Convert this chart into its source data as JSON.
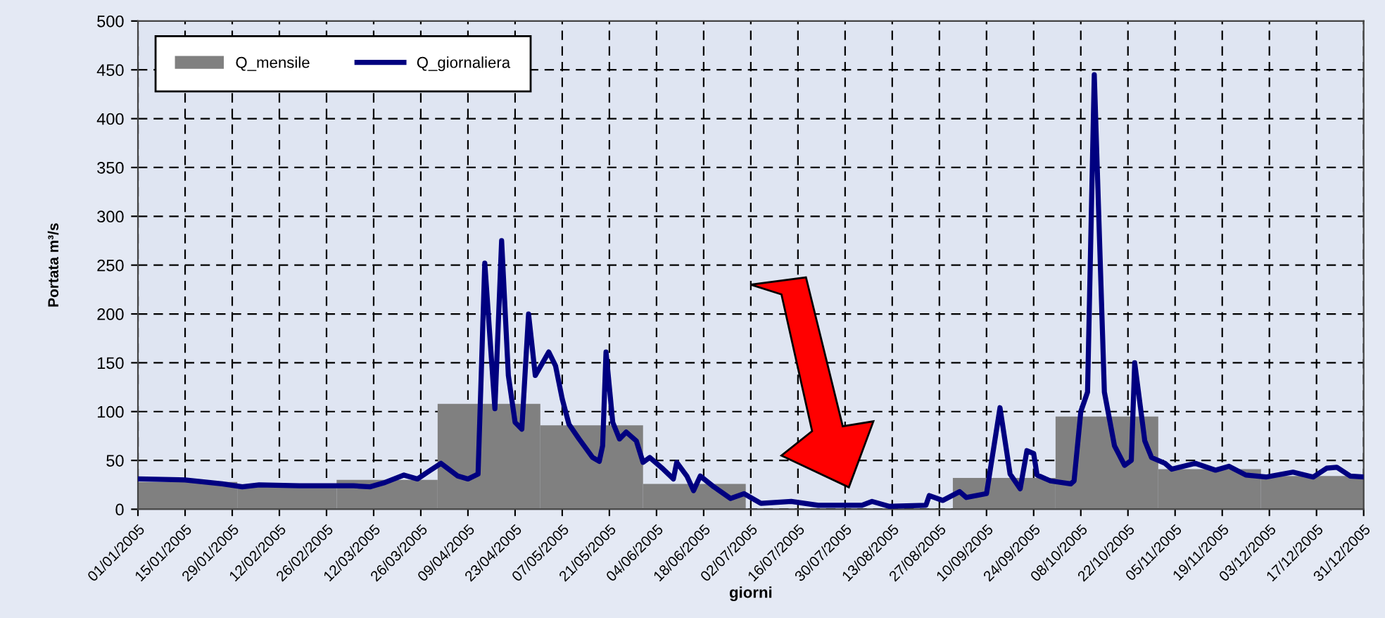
{
  "chart_data": {
    "type": "bar",
    "xlabel": "giorni",
    "ylabel": "Portata m³/s",
    "xlim": [
      "2005-01-01",
      "2005-12-31"
    ],
    "ylim": [
      0,
      500
    ],
    "yticks": [
      0,
      50,
      100,
      150,
      200,
      250,
      300,
      350,
      400,
      450,
      500
    ],
    "xticks": [
      {
        "value": "2005-01-01",
        "label": "01/01/2005"
      },
      {
        "value": "2005-01-15",
        "label": "15/01/2005"
      },
      {
        "value": "2005-01-29",
        "label": "29/01/2005"
      },
      {
        "value": "2005-02-12",
        "label": "12/02/2005"
      },
      {
        "value": "2005-02-26",
        "label": "26/02/2005"
      },
      {
        "value": "2005-03-12",
        "label": "12/03/2005"
      },
      {
        "value": "2005-03-26",
        "label": "26/03/2005"
      },
      {
        "value": "2005-04-09",
        "label": "09/04/2005"
      },
      {
        "value": "2005-04-23",
        "label": "23/04/2005"
      },
      {
        "value": "2005-05-07",
        "label": "07/05/2005"
      },
      {
        "value": "2005-05-21",
        "label": "21/05/2005"
      },
      {
        "value": "2005-06-04",
        "label": "04/06/2005"
      },
      {
        "value": "2005-06-18",
        "label": "18/06/2005"
      },
      {
        "value": "2005-07-02",
        "label": "02/07/2005"
      },
      {
        "value": "2005-07-16",
        "label": "16/07/2005"
      },
      {
        "value": "2005-07-30",
        "label": "30/07/2005"
      },
      {
        "value": "2005-08-13",
        "label": "13/08/2005"
      },
      {
        "value": "2005-08-27",
        "label": "27/08/2005"
      },
      {
        "value": "2005-09-10",
        "label": "10/09/2005"
      },
      {
        "value": "2005-09-24",
        "label": "24/09/2005"
      },
      {
        "value": "2005-10-08",
        "label": "08/10/2005"
      },
      {
        "value": "2005-10-22",
        "label": "22/10/2005"
      },
      {
        "value": "2005-11-05",
        "label": "05/11/2005"
      },
      {
        "value": "2005-11-19",
        "label": "19/11/2005"
      },
      {
        "value": "2005-12-03",
        "label": "03/12/2005"
      },
      {
        "value": "2005-12-17",
        "label": "17/12/2005"
      },
      {
        "value": "2005-12-31",
        "label": "31/12/2005"
      }
    ],
    "grid": true,
    "legend": "top left",
    "line_style": "solid",
    "marker": "none",
    "series": [
      {
        "name": "Q_mensile",
        "color": "#808080",
        "x": [
          "2005-01-16",
          "2005-02-14",
          "2005-03-16",
          "2005-04-15",
          "2005-05-16",
          "2005-06-15",
          "2005-07-16",
          "2005-08-16",
          "2005-09-15",
          "2005-10-16",
          "2005-11-15",
          "2005-12-16"
        ],
        "values": [
          28,
          25,
          30,
          108,
          86,
          26,
          null,
          null,
          32,
          95,
          41,
          34
        ]
      },
      {
        "name": "Q_giornaliera",
        "type": "line",
        "color": "#000080",
        "x": [
          "2005-01-01",
          "2005-01-15",
          "2005-01-26",
          "2005-02-01",
          "2005-02-06",
          "2005-02-18",
          "2005-03-06",
          "2005-03-11",
          "2005-03-15",
          "2005-03-21",
          "2005-03-25",
          "2005-03-28",
          "2005-04-01",
          "2005-04-06",
          "2005-04-09",
          "2005-04-12",
          "2005-04-14",
          "2005-04-17",
          "2005-04-19",
          "2005-04-21",
          "2005-04-23",
          "2005-04-25",
          "2005-04-27",
          "2005-04-29",
          "2005-05-03",
          "2005-05-05",
          "2005-05-07",
          "2005-05-09",
          "2005-05-12",
          "2005-05-16",
          "2005-05-18",
          "2005-05-19",
          "2005-05-20",
          "2005-05-22",
          "2005-05-24",
          "2005-05-26",
          "2005-05-29",
          "2005-05-31",
          "2005-06-02",
          "2005-06-06",
          "2005-06-09",
          "2005-06-10",
          "2005-06-13",
          "2005-06-15",
          "2005-06-17",
          "2005-06-21",
          "2005-06-26",
          "2005-06-30",
          "2005-07-05",
          "2005-07-14",
          "2005-07-22",
          "2005-08-04",
          "2005-08-07",
          "2005-08-12",
          "2005-08-23",
          "2005-08-24",
          "2005-08-28",
          "2005-09-02",
          "2005-09-04",
          "2005-09-10",
          "2005-09-14",
          "2005-09-17",
          "2005-09-20",
          "2005-09-22",
          "2005-09-24",
          "2005-09-25",
          "2005-09-29",
          "2005-10-05",
          "2005-10-06",
          "2005-10-08",
          "2005-10-10",
          "2005-10-12",
          "2005-10-15",
          "2005-10-18",
          "2005-10-21",
          "2005-10-23",
          "2005-10-24",
          "2005-10-27",
          "2005-10-29",
          "2005-11-02",
          "2005-11-04",
          "2005-11-11",
          "2005-11-17",
          "2005-11-21",
          "2005-11-26",
          "2005-12-02",
          "2005-12-10",
          "2005-12-16",
          "2005-12-20",
          "2005-12-23",
          "2005-12-27",
          "2005-12-31"
        ],
        "values": [
          31,
          30,
          26,
          23,
          25,
          24,
          24,
          23,
          27,
          35,
          31,
          38,
          47,
          34,
          31,
          36,
          252,
          103,
          275,
          137,
          89,
          82,
          200,
          137,
          161,
          147,
          113,
          87,
          72,
          53,
          49,
          65,
          161,
          89,
          72,
          79,
          70,
          48,
          53,
          41,
          31,
          48,
          34,
          19,
          34,
          23,
          11,
          16,
          6,
          8,
          4,
          4,
          8,
          3,
          4,
          14,
          9,
          18,
          12,
          16,
          104,
          36,
          21,
          60,
          57,
          35,
          29,
          26,
          29,
          100,
          120,
          445,
          120,
          65,
          45,
          50,
          150,
          70,
          53,
          47,
          41,
          47,
          40,
          44,
          35,
          33,
          38,
          33,
          42,
          43,
          34,
          33
        ]
      }
    ]
  }
}
